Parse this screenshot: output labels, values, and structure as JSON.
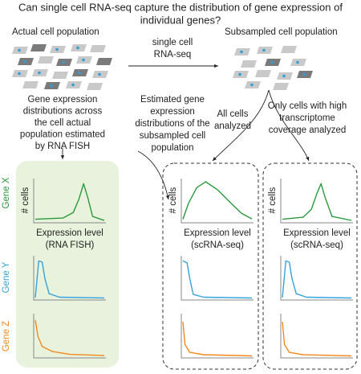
{
  "title": [
    "Can single cell RNA-seq capture the distribution of gene expression of",
    "individual genes?"
  ],
  "actual_population": "Actual cell population",
  "sequencing_step": [
    "single cell",
    "RNA-seq"
  ],
  "subsampled_population": "Subsampled cell population",
  "fish_caption": [
    "Gene expression",
    "distributions across",
    "the cell actual",
    "population estimated",
    "by RNA FISH"
  ],
  "estimated_caption": [
    "Estimated gene",
    "expression",
    "distributions of the",
    "subsampled cell",
    "population"
  ],
  "all_cells": [
    "All cells",
    "analyzed"
  ],
  "high_coverage": [
    "Only cells with high",
    "transcriptome",
    "coverage analyzed"
  ],
  "genes": [
    "Gene X",
    "Gene Y",
    "Gene Z"
  ],
  "y_axis_label": "# cells",
  "x_axis_labels": [
    [
      "Expression level",
      "(RNA FISH)"
    ],
    [
      "Expression level",
      "(scRNA-seq)"
    ],
    [
      "Expression level",
      "(scRNA-seq)"
    ]
  ]
}
